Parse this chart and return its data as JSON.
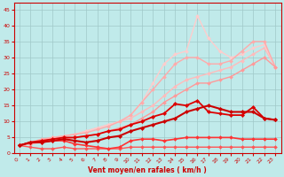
{
  "xlabel": "Vent moyen/en rafales ( km/h )",
  "xlim": [
    -0.5,
    23.5
  ],
  "ylim": [
    0,
    47
  ],
  "yticks": [
    0,
    5,
    10,
    15,
    20,
    25,
    30,
    35,
    40,
    45
  ],
  "xticks": [
    0,
    1,
    2,
    3,
    4,
    5,
    6,
    7,
    8,
    9,
    10,
    11,
    12,
    13,
    14,
    15,
    16,
    17,
    18,
    19,
    20,
    21,
    22,
    23
  ],
  "bg_color": "#c0eaea",
  "grid_color": "#a0c8c8",
  "series": [
    {
      "x": [
        0,
        1,
        2,
        3,
        4,
        5,
        6,
        7,
        8,
        9,
        10,
        11,
        12,
        13,
        14,
        15,
        16,
        17,
        18,
        19,
        20,
        21,
        22,
        23
      ],
      "y": [
        2.5,
        3.5,
        4,
        5,
        5.5,
        6,
        7,
        8,
        9,
        10,
        11,
        13,
        15,
        18,
        21,
        23,
        24,
        25,
        26,
        27,
        29,
        31,
        33,
        27
      ],
      "color": "#ffbbbb",
      "lw": 1.0,
      "marker": "D",
      "ms": 2.0,
      "zorder": 2
    },
    {
      "x": [
        0,
        1,
        2,
        3,
        4,
        5,
        6,
        7,
        8,
        9,
        10,
        11,
        12,
        13,
        14,
        15,
        16,
        17,
        18,
        19,
        20,
        21,
        22,
        23
      ],
      "y": [
        2.5,
        3.5,
        4,
        5,
        5.5,
        6,
        7,
        8,
        9,
        10,
        12,
        16,
        22,
        28,
        31,
        32,
        43,
        36,
        32,
        30,
        31,
        33,
        34,
        27
      ],
      "color": "#ffcccc",
      "lw": 1.0,
      "marker": "D",
      "ms": 2.0,
      "zorder": 2
    },
    {
      "x": [
        0,
        1,
        2,
        3,
        4,
        5,
        6,
        7,
        8,
        9,
        10,
        11,
        12,
        13,
        14,
        15,
        16,
        17,
        18,
        19,
        20,
        21,
        22,
        23
      ],
      "y": [
        2.5,
        3.5,
        4.5,
        5,
        5.5,
        6,
        6.5,
        7.5,
        8.5,
        10,
        12,
        16,
        20,
        24,
        28,
        30,
        30,
        28,
        28,
        29,
        32,
        35,
        35,
        27
      ],
      "color": "#ffaaaa",
      "lw": 1.0,
      "marker": "D",
      "ms": 2.0,
      "zorder": 2
    },
    {
      "x": [
        0,
        1,
        2,
        3,
        4,
        5,
        6,
        7,
        8,
        9,
        10,
        11,
        12,
        13,
        14,
        15,
        16,
        17,
        18,
        19,
        20,
        21,
        22,
        23
      ],
      "y": [
        2.5,
        3,
        3.5,
        4,
        4.5,
        5,
        5.5,
        6,
        7,
        8,
        9,
        11,
        13,
        16,
        18,
        20,
        22,
        22,
        23,
        24,
        26,
        28,
        30,
        27
      ],
      "color": "#ff9999",
      "lw": 1.0,
      "marker": "D",
      "ms": 2.0,
      "zorder": 2
    },
    {
      "x": [
        0,
        1,
        2,
        3,
        4,
        5,
        6,
        7,
        8,
        9,
        10,
        11,
        12,
        13,
        14,
        15,
        16,
        17,
        18,
        19,
        20,
        21,
        22,
        23
      ],
      "y": [
        2.5,
        3.5,
        4,
        4.5,
        5,
        5,
        5.5,
        6,
        7,
        7.5,
        9,
        10,
        11.5,
        12.5,
        15.5,
        15,
        16.5,
        13,
        12.5,
        12,
        12,
        14.5,
        11,
        10.5
      ],
      "color": "#dd0000",
      "lw": 1.3,
      "marker": "D",
      "ms": 2.2,
      "zorder": 5
    },
    {
      "x": [
        0,
        1,
        2,
        3,
        4,
        5,
        6,
        7,
        8,
        9,
        10,
        11,
        12,
        13,
        14,
        15,
        16,
        17,
        18,
        19,
        20,
        21,
        22,
        23
      ],
      "y": [
        2.5,
        3.5,
        3.5,
        4,
        4.5,
        4,
        3.5,
        4,
        5,
        5.5,
        7,
        8,
        9,
        10,
        11,
        13,
        14,
        15,
        14,
        13,
        13,
        13,
        11,
        10.5
      ],
      "color": "#cc0000",
      "lw": 1.5,
      "marker": "D",
      "ms": 2.2,
      "zorder": 5
    },
    {
      "x": [
        0,
        1,
        2,
        3,
        4,
        5,
        6,
        7,
        8,
        9,
        10,
        11,
        12,
        13,
        14,
        15,
        16,
        17,
        18,
        19,
        20,
        21,
        22,
        23
      ],
      "y": [
        2.5,
        3.5,
        3.5,
        4,
        4,
        3,
        2.5,
        2,
        1.5,
        2,
        4,
        4.5,
        4.5,
        4,
        4.5,
        5,
        5,
        5,
        5,
        5,
        4.5,
        4.5,
        4.5,
        4.5
      ],
      "color": "#ff3333",
      "lw": 1.2,
      "marker": "D",
      "ms": 2.0,
      "zorder": 4
    },
    {
      "x": [
        0,
        1,
        2,
        3,
        4,
        5,
        6,
        7,
        8,
        9,
        10,
        11,
        12,
        13,
        14,
        15,
        16,
        17,
        18,
        19,
        20,
        21,
        22,
        23
      ],
      "y": [
        2.5,
        2,
        1.5,
        1.5,
        2,
        1.5,
        1.5,
        1.5,
        1.5,
        1.5,
        2,
        2,
        2,
        2,
        2,
        2,
        2,
        2,
        2,
        2,
        2,
        2,
        2,
        2
      ],
      "color": "#ff5555",
      "lw": 1.0,
      "marker": "D",
      "ms": 2.0,
      "zorder": 3
    }
  ]
}
